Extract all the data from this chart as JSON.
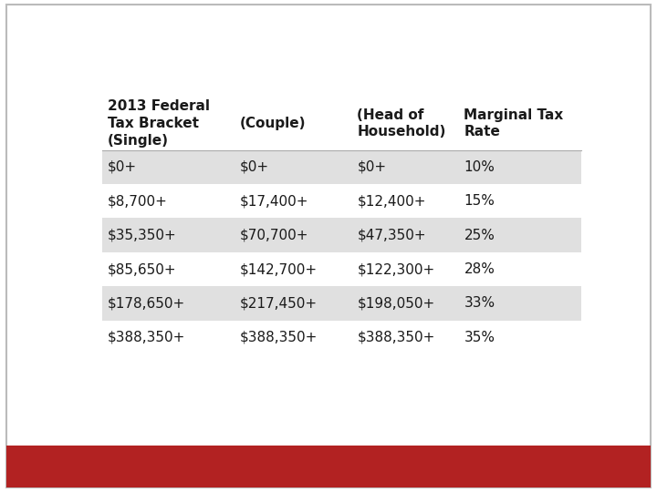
{
  "headers": [
    "2013 Federal\nTax Bracket\n(Single)",
    "(Couple)",
    "(Head of\nHousehold)",
    "Marginal Tax\nRate"
  ],
  "rows": [
    [
      "$0+",
      "$0+",
      "$0+",
      "10%"
    ],
    [
      "$8,700+",
      "$17,400+",
      "$12,400+",
      "15%"
    ],
    [
      "$35,350+",
      "$70,700+",
      "$47,350+",
      "25%"
    ],
    [
      "$85,650+",
      "$142,700+",
      "$122,300+",
      "28%"
    ],
    [
      "$178,650+",
      "$217,450+",
      "$198,050+",
      "33%"
    ],
    [
      "$388,350+",
      "$388,350+",
      "$388,350+",
      "35%"
    ]
  ],
  "shaded_rows": [
    0,
    2,
    4
  ],
  "bg_color": "#ffffff",
  "shade_color": "#e0e0e0",
  "text_color": "#1a1a1a",
  "header_color": "#1a1a1a",
  "red_bar_color": "#b22222",
  "outer_border_color": "#bbbbbb",
  "font_size": 11,
  "header_font_size": 11
}
